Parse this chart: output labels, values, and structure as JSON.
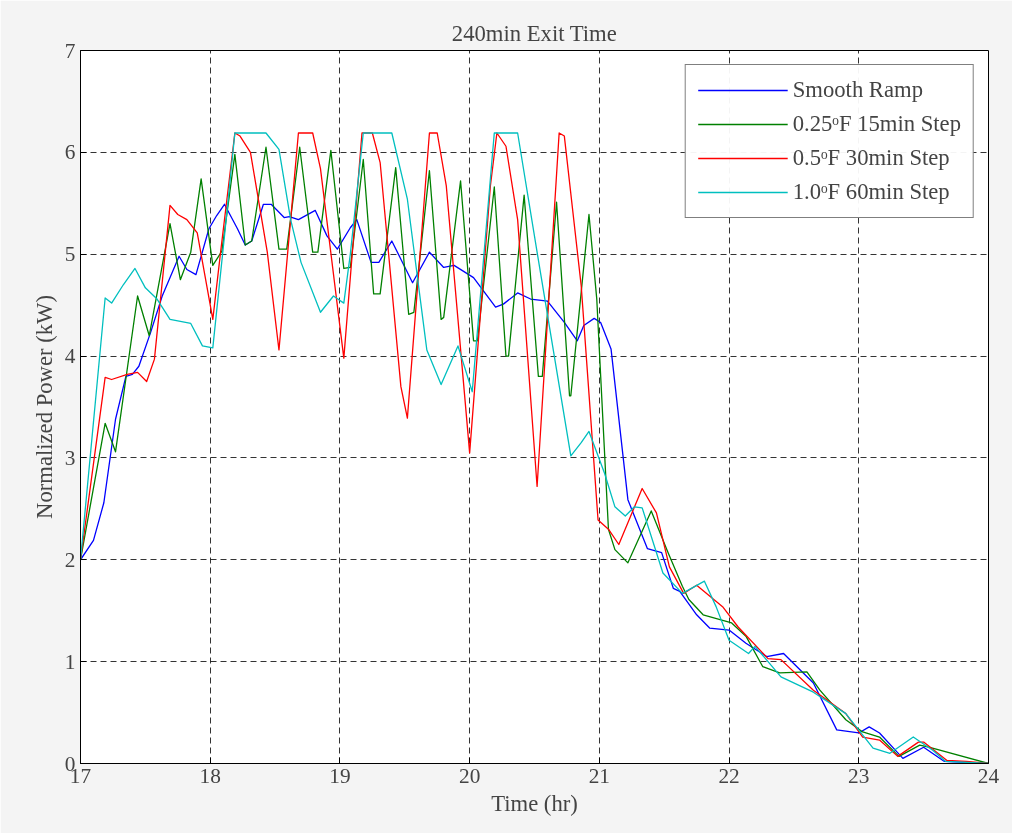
{
  "chart_data": {
    "type": "line",
    "title": "240min Exit Time",
    "xlabel": "Time (hr)",
    "ylabel": "Normalized Power (kW)",
    "xlim": [
      17,
      24
    ],
    "ylim": [
      0,
      7
    ],
    "xticks": [
      17,
      18,
      19,
      20,
      21,
      22,
      23,
      24
    ],
    "yticks": [
      0,
      1,
      2,
      3,
      4,
      5,
      6,
      7
    ],
    "grid": true,
    "legend": "top right",
    "line_style": "solid",
    "marker": "none",
    "series": [
      {
        "name": "Smooth Ramp",
        "color": "#0000ff",
        "x": [
          17.0,
          17.1,
          17.18,
          17.27,
          17.35,
          17.4,
          17.45,
          17.54,
          17.63,
          17.76,
          17.82,
          17.89,
          17.99,
          18.05,
          18.11,
          18.21,
          18.27,
          18.32,
          18.41,
          18.47,
          18.57,
          18.61,
          18.68,
          18.81,
          18.9,
          18.98,
          19.08,
          19.13,
          19.24,
          19.3,
          19.4,
          19.56,
          19.69,
          19.8,
          19.88,
          20.03,
          20.2,
          20.26,
          20.37,
          20.47,
          20.6,
          20.73,
          20.83,
          20.88,
          20.96,
          21.01,
          21.09,
          21.22,
          21.37,
          21.48,
          21.57,
          21.62,
          21.75,
          21.85,
          22.0,
          22.13,
          22.29,
          22.42,
          22.65,
          22.83,
          23.0,
          23.08,
          23.16,
          23.34,
          23.5,
          23.66,
          24.0
        ],
        "values": [
          2.0,
          2.19,
          2.56,
          3.38,
          3.8,
          3.82,
          3.9,
          4.23,
          4.59,
          4.98,
          4.85,
          4.8,
          5.25,
          5.38,
          5.49,
          5.25,
          5.09,
          5.13,
          5.49,
          5.49,
          5.36,
          5.37,
          5.34,
          5.43,
          5.18,
          5.05,
          5.26,
          5.34,
          4.92,
          4.92,
          5.13,
          4.72,
          5.02,
          4.87,
          4.89,
          4.77,
          4.48,
          4.51,
          4.62,
          4.56,
          4.54,
          4.33,
          4.15,
          4.3,
          4.37,
          4.33,
          4.07,
          2.59,
          2.11,
          2.07,
          1.72,
          1.69,
          1.46,
          1.33,
          1.31,
          1.18,
          1.05,
          1.08,
          0.79,
          0.33,
          0.3,
          0.36,
          0.3,
          0.05,
          0.16,
          0.02,
          0.0
        ]
      },
      {
        "name": "0.25ᵒF 15min Step",
        "color": "#008000",
        "x": [
          17.0,
          17.19,
          17.27,
          17.44,
          17.53,
          17.69,
          17.77,
          17.85,
          17.93,
          18.02,
          18.09,
          18.19,
          18.27,
          18.32,
          18.43,
          18.53,
          18.59,
          18.69,
          18.79,
          18.83,
          18.93,
          19.03,
          19.08,
          19.18,
          19.26,
          19.31,
          19.43,
          19.53,
          19.57,
          19.69,
          19.78,
          19.8,
          19.93,
          20.03,
          20.06,
          20.19,
          20.28,
          20.3,
          20.42,
          20.53,
          20.56,
          20.67,
          20.77,
          20.78,
          20.92,
          20.98,
          21.07,
          21.12,
          21.22,
          21.4,
          21.53,
          21.64,
          21.69,
          21.8,
          22.02,
          22.13,
          22.26,
          22.39,
          22.6,
          22.7,
          22.9,
          23.03,
          23.16,
          23.31,
          23.47,
          23.54,
          24.0
        ],
        "values": [
          2.0,
          3.34,
          3.06,
          4.59,
          4.2,
          5.3,
          4.75,
          5.02,
          5.74,
          4.89,
          5.03,
          5.98,
          5.09,
          5.13,
          6.05,
          5.05,
          5.05,
          6.05,
          5.02,
          5.02,
          6.02,
          4.86,
          4.87,
          5.93,
          4.61,
          4.61,
          5.85,
          4.41,
          4.43,
          5.82,
          4.36,
          4.38,
          5.72,
          4.15,
          4.15,
          5.66,
          4.0,
          4.0,
          5.58,
          3.8,
          3.8,
          5.51,
          3.61,
          3.61,
          5.39,
          4.56,
          2.3,
          2.1,
          1.97,
          2.48,
          2.07,
          1.74,
          1.61,
          1.46,
          1.38,
          1.25,
          0.95,
          0.89,
          0.9,
          0.72,
          0.43,
          0.31,
          0.26,
          0.07,
          0.18,
          0.16,
          0.0
        ]
      },
      {
        "name": "0.5ᵒF 30min Step",
        "color": "#ff0000",
        "x": [
          17.0,
          17.19,
          17.24,
          17.36,
          17.44,
          17.51,
          17.57,
          17.69,
          17.75,
          17.82,
          17.9,
          18.02,
          18.08,
          18.19,
          18.23,
          18.31,
          18.44,
          18.53,
          18.68,
          18.79,
          18.85,
          19.03,
          19.17,
          19.25,
          19.31,
          19.47,
          19.52,
          19.69,
          19.75,
          19.82,
          20.0,
          20.16,
          20.21,
          20.28,
          20.37,
          20.52,
          20.69,
          20.73,
          20.86,
          20.99,
          21.07,
          21.15,
          21.33,
          21.44,
          21.54,
          21.65,
          21.75,
          21.95,
          22.07,
          22.3,
          22.4,
          22.65,
          22.9,
          23.03,
          23.16,
          23.3,
          23.46,
          23.5,
          23.68,
          23.83,
          24.0
        ],
        "values": [
          2.0,
          3.79,
          3.77,
          3.82,
          3.84,
          3.75,
          3.97,
          5.48,
          5.39,
          5.34,
          5.21,
          4.36,
          5.02,
          6.19,
          6.16,
          6.0,
          5.02,
          4.06,
          6.19,
          6.19,
          5.84,
          3.98,
          6.19,
          6.19,
          5.9,
          3.7,
          3.39,
          6.19,
          6.19,
          5.67,
          3.05,
          5.67,
          6.19,
          6.06,
          5.34,
          2.72,
          6.19,
          6.16,
          4.69,
          2.39,
          2.3,
          2.15,
          2.7,
          2.46,
          1.93,
          1.67,
          1.75,
          1.54,
          1.34,
          1.03,
          1.02,
          0.72,
          0.49,
          0.26,
          0.23,
          0.07,
          0.21,
          0.21,
          0.03,
          0.02,
          0.0
        ]
      },
      {
        "name": "1.0ᵒF 60min Step",
        "color": "#00bfbf",
        "x": [
          17.0,
          17.19,
          17.24,
          17.33,
          17.42,
          17.5,
          17.59,
          17.69,
          17.77,
          17.85,
          17.94,
          18.02,
          18.11,
          18.19,
          18.43,
          18.53,
          18.62,
          18.7,
          18.85,
          18.95,
          19.03,
          19.08,
          19.18,
          19.4,
          19.52,
          19.67,
          19.78,
          19.91,
          20.02,
          20.19,
          20.37,
          20.52,
          20.78,
          20.86,
          20.92,
          21.04,
          21.12,
          21.2,
          21.27,
          21.33,
          21.49,
          21.64,
          21.81,
          21.9,
          22.0,
          22.15,
          22.2,
          22.4,
          22.65,
          22.9,
          23.11,
          23.24,
          23.42,
          23.57,
          23.67,
          24.0
        ],
        "values": [
          2.0,
          4.57,
          4.52,
          4.7,
          4.86,
          4.67,
          4.56,
          4.36,
          4.34,
          4.32,
          4.1,
          4.08,
          5.18,
          6.19,
          6.19,
          6.03,
          5.34,
          4.92,
          4.43,
          4.59,
          4.52,
          5.0,
          6.19,
          6.19,
          5.54,
          4.06,
          3.72,
          4.1,
          3.65,
          6.19,
          6.19,
          5.02,
          3.02,
          3.15,
          3.26,
          2.85,
          2.52,
          2.43,
          2.52,
          2.51,
          1.87,
          1.67,
          1.79,
          1.54,
          1.21,
          1.08,
          1.15,
          0.85,
          0.7,
          0.49,
          0.15,
          0.1,
          0.26,
          0.13,
          0.02,
          0.0
        ]
      }
    ]
  }
}
